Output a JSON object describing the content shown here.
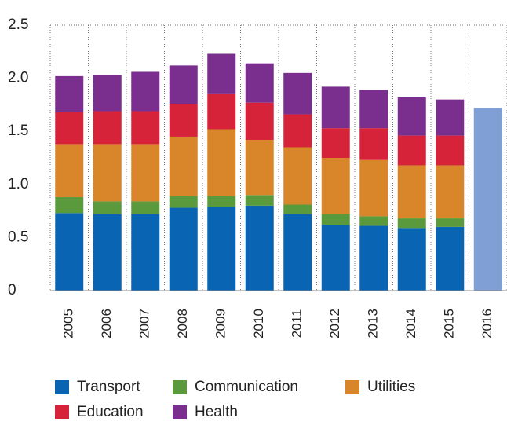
{
  "chart_data": {
    "type": "bar",
    "categories": [
      "2005",
      "2006",
      "2007",
      "2008",
      "2009",
      "2010",
      "2011",
      "2012",
      "2013",
      "2014",
      "2015",
      "2016"
    ],
    "series": [
      {
        "name": "Transport",
        "color": "#0a64b4",
        "values": [
          0.73,
          0.72,
          0.72,
          0.78,
          0.79,
          0.8,
          0.72,
          0.62,
          0.61,
          0.59,
          0.6,
          null
        ]
      },
      {
        "name": "Communication",
        "color": "#5a9a3c",
        "values": [
          0.15,
          0.12,
          0.12,
          0.11,
          0.1,
          0.1,
          0.09,
          0.1,
          0.09,
          0.09,
          0.08,
          null
        ]
      },
      {
        "name": "Utilities",
        "color": "#d9862a",
        "values": [
          0.5,
          0.54,
          0.54,
          0.56,
          0.63,
          0.52,
          0.54,
          0.53,
          0.53,
          0.5,
          0.5,
          null
        ]
      },
      {
        "name": "Education",
        "color": "#d7233a",
        "values": [
          0.3,
          0.31,
          0.31,
          0.31,
          0.33,
          0.35,
          0.31,
          0.28,
          0.3,
          0.28,
          0.28,
          null
        ]
      },
      {
        "name": "Health",
        "color": "#7a2f8e",
        "values": [
          0.34,
          0.34,
          0.37,
          0.36,
          0.38,
          0.37,
          0.39,
          0.39,
          0.36,
          0.36,
          0.34,
          null
        ]
      }
    ],
    "total_bar": {
      "color": "#7f9fd5",
      "values": [
        null,
        null,
        null,
        null,
        null,
        null,
        null,
        null,
        null,
        null,
        null,
        1.72
      ]
    },
    "ylim": [
      0,
      2.5
    ],
    "yticks": [
      0,
      0.5,
      {
        "value": 1,
        "label": "1.0"
      },
      1.5,
      {
        "value": 2,
        "label": "2.0"
      },
      2.5
    ],
    "grid": true,
    "legend": "bottom"
  }
}
